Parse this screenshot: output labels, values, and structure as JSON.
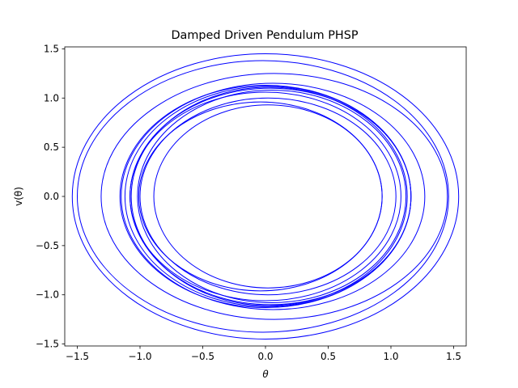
{
  "chart_data": {
    "type": "line",
    "title": "Damped Driven Pendulum PHSP",
    "xlabel": "θ",
    "ylabel": "v(θ)",
    "xlim": [
      -1.6,
      1.6
    ],
    "ylim": [
      -1.52,
      1.52
    ],
    "x_ticks": [
      -1.5,
      -1.0,
      -0.5,
      0.0,
      0.5,
      1.0,
      1.5
    ],
    "x_tick_labels": [
      "−1.5",
      "−1.0",
      "−0.5",
      "0.0",
      "0.5",
      "1.0",
      "1.5"
    ],
    "y_ticks": [
      -1.5,
      -1.0,
      -0.5,
      0.0,
      0.5,
      1.0,
      1.5
    ],
    "y_tick_labels": [
      "−1.5",
      "−1.0",
      "−0.5",
      "0.0",
      "0.5",
      "1.0",
      "1.5"
    ],
    "grid": false,
    "series_color": "#0000ff",
    "series": [
      {
        "orbits": [
          {
            "center_x": 0.0,
            "amplitude_x": 1.54,
            "amplitude_y": 1.45
          },
          {
            "center_x": -0.02,
            "amplitude_x": 1.48,
            "amplitude_y": 1.38
          },
          {
            "center_x": 0.07,
            "amplitude_x": 1.38,
            "amplitude_y": 1.25
          },
          {
            "center_x": 0.06,
            "amplitude_x": 1.21,
            "amplitude_y": 1.15
          },
          {
            "center_x": 0.0,
            "amplitude_x": 1.16,
            "amplitude_y": 1.13
          },
          {
            "center_x": 0.02,
            "amplitude_x": 1.14,
            "amplitude_y": 1.12
          },
          {
            "center_x": 0.04,
            "amplitude_x": 1.12,
            "amplitude_y": 1.1
          },
          {
            "center_x": 0.03,
            "amplitude_x": 1.1,
            "amplitude_y": 1.11
          },
          {
            "center_x": 0.0,
            "amplitude_x": 1.08,
            "amplitude_y": 1.06
          },
          {
            "center_x": 0.05,
            "amplitude_x": 1.07,
            "amplitude_y": 1.08
          },
          {
            "center_x": 0.02,
            "amplitude_x": 1.02,
            "amplitude_y": 1.0
          },
          {
            "center_x": -0.04,
            "amplitude_x": 0.97,
            "amplitude_y": 0.96
          },
          {
            "center_x": 0.02,
            "amplitude_x": 0.91,
            "amplitude_y": 0.93
          }
        ]
      }
    ]
  }
}
